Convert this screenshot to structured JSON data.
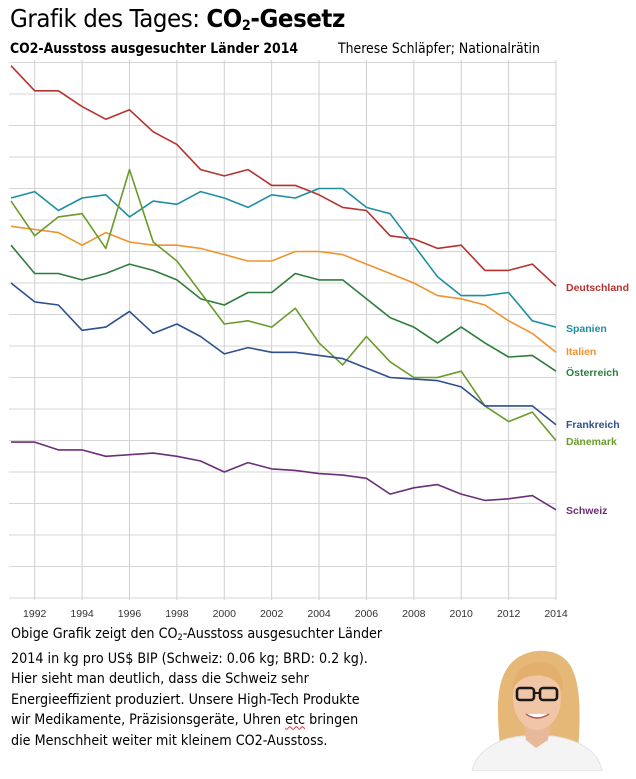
{
  "header": {
    "title_prefix": "Grafik des Tages: ",
    "title_bold_pre": "CO",
    "title_bold_sub": "2",
    "title_bold_post": "-Gesetz",
    "subtitle": "CO2-Ausstoss ausgesuchter Länder 2014",
    "author": "Therese Schläpfer; Nationalrätin"
  },
  "chart_data": {
    "type": "line",
    "title": "CO2-Ausstoss ausgesuchter Länder 2014",
    "xlabel": "",
    "ylabel": "",
    "y_units_note": "no y tick labels shown; values in gridline units above baseline",
    "x": [
      1991,
      1992,
      1993,
      1994,
      1995,
      1996,
      1997,
      1998,
      1999,
      2000,
      2001,
      2002,
      2003,
      2004,
      2005,
      2006,
      2007,
      2008,
      2009,
      2010,
      2011,
      2012,
      2013,
      2014
    ],
    "xticks": [
      "1992",
      "1994",
      "1996",
      "1998",
      "2000",
      "2002",
      "2004",
      "2006",
      "2008",
      "2010",
      "2012",
      "2014"
    ],
    "xlim": [
      1991,
      2014
    ],
    "ylim": [
      0,
      17
    ],
    "grid": true,
    "legend": "right, inline labels at line ends",
    "series": [
      {
        "name": "Deutschland",
        "color": "#b5322e",
        "values": [
          16.9,
          16.1,
          16.1,
          15.6,
          15.2,
          15.5,
          14.8,
          14.4,
          13.6,
          13.4,
          13.6,
          13.1,
          13.1,
          12.8,
          12.4,
          12.3,
          11.5,
          11.4,
          11.1,
          11.2,
          10.4,
          10.4,
          10.6,
          9.9
        ]
      },
      {
        "name": "Spanien",
        "color": "#1e8fa3",
        "values": [
          12.7,
          12.9,
          12.3,
          12.7,
          12.8,
          12.1,
          12.6,
          12.5,
          12.9,
          12.7,
          12.4,
          12.8,
          12.7,
          13.0,
          13.0,
          12.4,
          12.2,
          11.2,
          10.2,
          9.6,
          9.6,
          9.7,
          8.8,
          8.6
        ]
      },
      {
        "name": "Italien",
        "color": "#f0922e",
        "values": [
          11.8,
          11.7,
          11.6,
          11.2,
          11.6,
          11.3,
          11.2,
          11.2,
          11.1,
          10.9,
          10.7,
          10.7,
          11.0,
          11.0,
          10.9,
          10.6,
          10.3,
          10.0,
          9.6,
          9.5,
          9.3,
          8.8,
          8.4,
          7.8
        ]
      },
      {
        "name": "Österreich",
        "color": "#2e7d3e",
        "values": [
          11.2,
          10.3,
          10.3,
          10.1,
          10.3,
          10.6,
          10.4,
          10.1,
          9.5,
          9.3,
          9.7,
          9.7,
          10.3,
          10.1,
          10.1,
          9.5,
          8.9,
          8.6,
          8.1,
          8.6,
          8.1,
          7.65,
          7.7,
          7.2
        ]
      },
      {
        "name": "Dänemark",
        "color": "#6a9a2a",
        "values": [
          12.6,
          11.5,
          12.1,
          12.2,
          11.1,
          13.6,
          11.3,
          10.7,
          9.7,
          8.7,
          8.8,
          8.6,
          9.2,
          8.1,
          7.4,
          8.3,
          7.5,
          7.0,
          7.0,
          7.2,
          6.1,
          5.6,
          5.9,
          5.0
        ]
      },
      {
        "name": "Frankreich",
        "color": "#2f4f8f",
        "values": [
          10.0,
          9.4,
          9.3,
          8.5,
          8.6,
          9.1,
          8.4,
          8.7,
          8.3,
          7.75,
          7.95,
          7.8,
          7.8,
          7.7,
          7.6,
          7.3,
          7.0,
          6.95,
          6.9,
          6.7,
          6.1,
          6.1,
          6.1,
          5.5
        ]
      },
      {
        "name": "Schweiz",
        "color": "#6b2f7a",
        "values": [
          4.95,
          4.95,
          4.7,
          4.7,
          4.5,
          4.55,
          4.6,
          4.5,
          4.35,
          4.0,
          4.3,
          4.1,
          4.05,
          3.95,
          3.9,
          3.8,
          3.3,
          3.5,
          3.6,
          3.3,
          3.1,
          3.15,
          3.25,
          2.8
        ]
      }
    ]
  },
  "body": {
    "line1_pre": "Obige Grafik zeigt den CO",
    "line1_sub": "2",
    "line1_post": "-Ausstoss ausgesuchter Länder",
    "line2": "2014 in kg pro US$ BIP (Schweiz: 0.06 kg; BRD: 0.2 kg).",
    "line3": "Hier sieht man deutlich, dass die Schweiz sehr",
    "line4": "Energieeffizient produziert. Unsere High-Tech Produkte",
    "line5_pre": "wir Medikamente, Präzisionsgeräte, Uhren ",
    "line5_spell": "etc",
    "line5_post": " bringen",
    "line6": "die Menschheit weiter mit kleinem CO2-Ausstoss."
  },
  "photo": {
    "description": "portrait of Therese Schläpfer"
  }
}
